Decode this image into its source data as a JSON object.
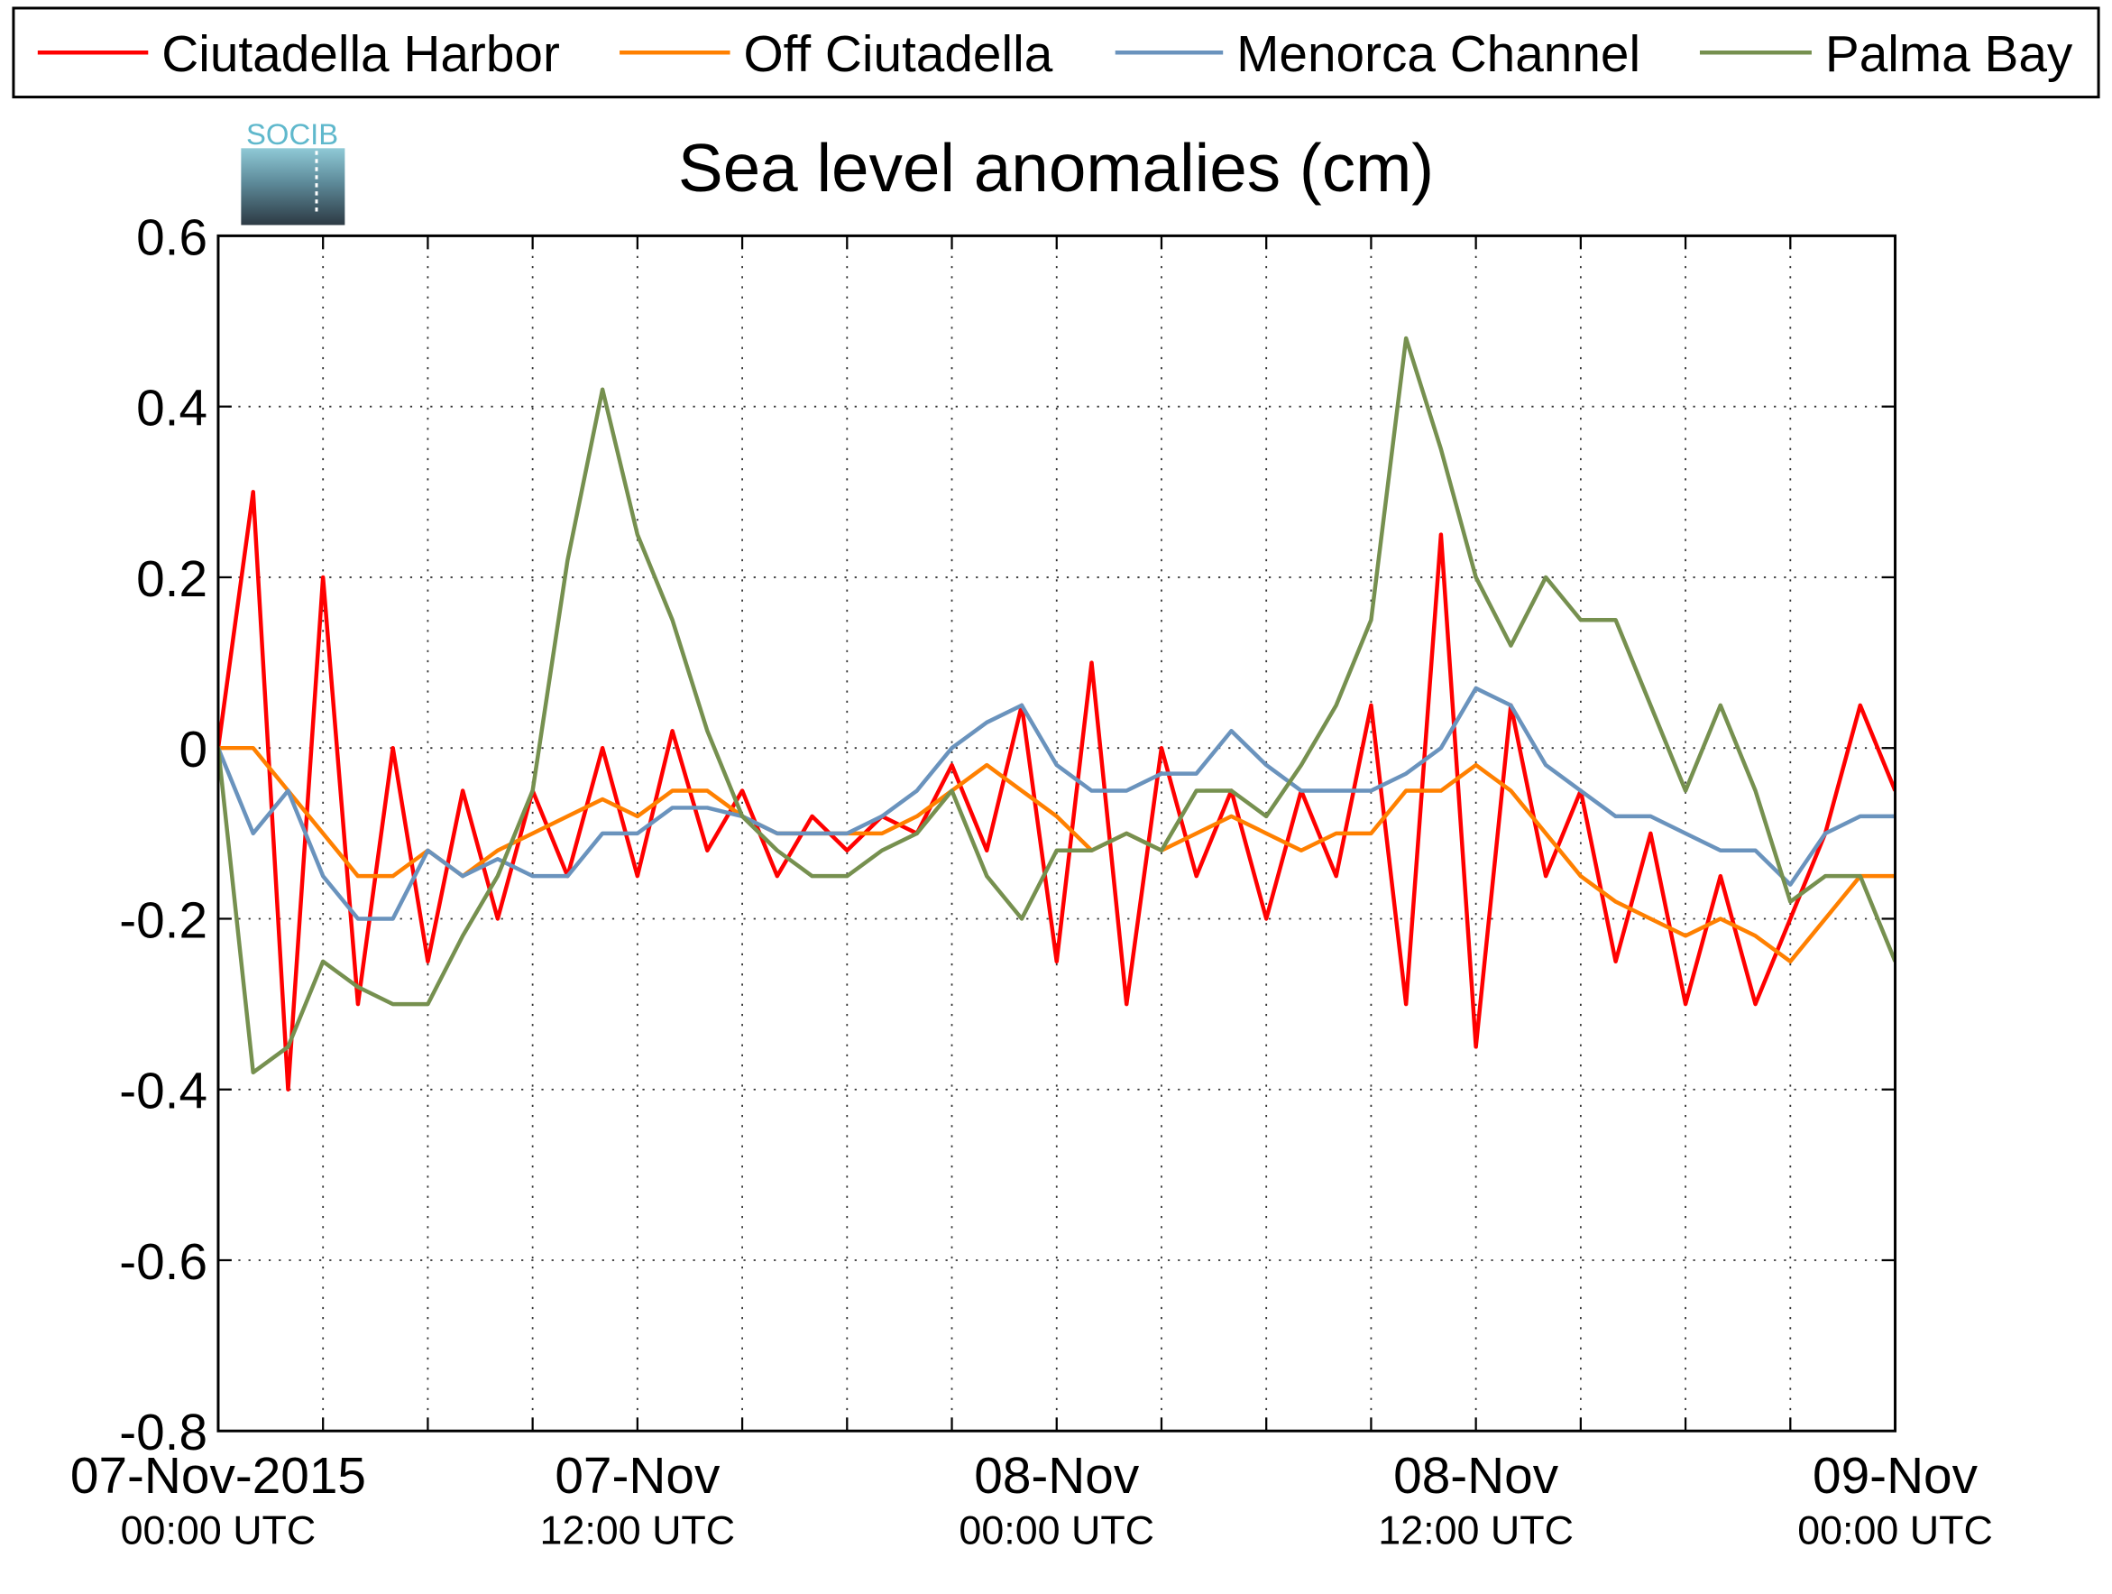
{
  "chart_data": {
    "type": "line",
    "title": "Sea level anomalies (cm)",
    "logo": "SOCIB",
    "x": [
      "2015-11-07T00:00",
      "2015-11-07T01:00",
      "2015-11-07T02:00",
      "2015-11-07T03:00",
      "2015-11-07T04:00",
      "2015-11-07T05:00",
      "2015-11-07T06:00",
      "2015-11-07T07:00",
      "2015-11-07T08:00",
      "2015-11-07T09:00",
      "2015-11-07T10:00",
      "2015-11-07T11:00",
      "2015-11-07T12:00",
      "2015-11-07T13:00",
      "2015-11-07T14:00",
      "2015-11-07T15:00",
      "2015-11-07T16:00",
      "2015-11-07T17:00",
      "2015-11-07T18:00",
      "2015-11-07T19:00",
      "2015-11-07T20:00",
      "2015-11-07T21:00",
      "2015-11-07T22:00",
      "2015-11-07T23:00",
      "2015-11-08T00:00",
      "2015-11-08T01:00",
      "2015-11-08T02:00",
      "2015-11-08T03:00",
      "2015-11-08T04:00",
      "2015-11-08T05:00",
      "2015-11-08T06:00",
      "2015-11-08T07:00",
      "2015-11-08T08:00",
      "2015-11-08T09:00",
      "2015-11-08T10:00",
      "2015-11-08T11:00",
      "2015-11-08T12:00",
      "2015-11-08T13:00",
      "2015-11-08T14:00",
      "2015-11-08T15:00",
      "2015-11-08T16:00",
      "2015-11-08T17:00",
      "2015-11-08T18:00",
      "2015-11-08T19:00",
      "2015-11-08T20:00",
      "2015-11-08T21:00",
      "2015-11-08T22:00",
      "2015-11-08T23:00",
      "2015-11-09T00:00"
    ],
    "series": [
      {
        "name": "Ciutadella Harbor",
        "color": "#ff0000",
        "values": [
          0.0,
          0.3,
          -0.4,
          0.2,
          -0.3,
          0.0,
          -0.25,
          -0.05,
          -0.2,
          -0.05,
          -0.15,
          0.0,
          -0.15,
          0.02,
          -0.12,
          -0.05,
          -0.15,
          -0.08,
          -0.12,
          -0.08,
          -0.1,
          -0.02,
          -0.12,
          0.05,
          -0.25,
          0.1,
          -0.3,
          0.0,
          -0.15,
          -0.05,
          -0.2,
          -0.05,
          -0.15,
          0.05,
          -0.3,
          0.25,
          -0.35,
          0.05,
          -0.15,
          -0.05,
          -0.25,
          -0.1,
          -0.3,
          -0.15,
          -0.3,
          -0.2,
          -0.1,
          0.05,
          -0.05
        ]
      },
      {
        "name": "Off Ciutadella",
        "color": "#ff8000",
        "values": [
          0.0,
          0.0,
          -0.05,
          -0.1,
          -0.15,
          -0.15,
          -0.12,
          -0.15,
          -0.12,
          -0.1,
          -0.08,
          -0.06,
          -0.08,
          -0.05,
          -0.05,
          -0.08,
          -0.1,
          -0.1,
          -0.1,
          -0.1,
          -0.08,
          -0.05,
          -0.02,
          -0.05,
          -0.08,
          -0.12,
          -0.1,
          -0.12,
          -0.1,
          -0.08,
          -0.1,
          -0.12,
          -0.1,
          -0.1,
          -0.05,
          -0.05,
          -0.02,
          -0.05,
          -0.1,
          -0.15,
          -0.18,
          -0.2,
          -0.22,
          -0.2,
          -0.22,
          -0.25,
          -0.2,
          -0.15,
          -0.15
        ]
      },
      {
        "name": "Menorca Channel",
        "color": "#6a93bd",
        "values": [
          0.0,
          -0.1,
          -0.05,
          -0.15,
          -0.2,
          -0.2,
          -0.12,
          -0.15,
          -0.13,
          -0.15,
          -0.15,
          -0.1,
          -0.1,
          -0.07,
          -0.07,
          -0.08,
          -0.1,
          -0.1,
          -0.1,
          -0.08,
          -0.05,
          0.0,
          0.03,
          0.05,
          -0.02,
          -0.05,
          -0.05,
          -0.03,
          -0.03,
          0.02,
          -0.02,
          -0.05,
          -0.05,
          -0.05,
          -0.03,
          0.0,
          0.07,
          0.05,
          -0.02,
          -0.05,
          -0.08,
          -0.08,
          -0.1,
          -0.12,
          -0.12,
          -0.16,
          -0.1,
          -0.08,
          -0.08
        ]
      },
      {
        "name": "Palma Bay",
        "color": "#76904f",
        "values": [
          0.0,
          -0.38,
          -0.35,
          -0.25,
          -0.28,
          -0.3,
          -0.3,
          -0.22,
          -0.15,
          -0.05,
          0.22,
          0.42,
          0.25,
          0.15,
          0.02,
          -0.08,
          -0.12,
          -0.15,
          -0.15,
          -0.12,
          -0.1,
          -0.05,
          -0.15,
          -0.2,
          -0.12,
          -0.12,
          -0.1,
          -0.12,
          -0.05,
          -0.05,
          -0.08,
          -0.02,
          0.05,
          0.15,
          0.48,
          0.35,
          0.2,
          0.12,
          0.2,
          0.15,
          0.15,
          0.05,
          -0.05,
          0.05,
          -0.05,
          -0.18,
          -0.15,
          -0.15,
          -0.25
        ]
      }
    ],
    "xlim": [
      "2015-11-07T00:00",
      "2015-11-09T00:00"
    ],
    "xticks": [
      {
        "value": "2015-11-07T00:00",
        "label": [
          "07-Nov-2015",
          "00:00 UTC"
        ]
      },
      {
        "value": "2015-11-07T12:00",
        "label": [
          "07-Nov",
          "12:00 UTC"
        ]
      },
      {
        "value": "2015-11-08T00:00",
        "label": [
          "08-Nov",
          "00:00 UTC"
        ]
      },
      {
        "value": "2015-11-08T12:00",
        "label": [
          "08-Nov",
          "12:00 UTC"
        ]
      },
      {
        "value": "2015-11-09T00:00",
        "label": [
          "09-Nov",
          "00:00 UTC"
        ]
      }
    ],
    "xminor": [
      "2015-11-07T03:00",
      "2015-11-07T06:00",
      "2015-11-07T09:00",
      "2015-11-07T15:00",
      "2015-11-07T18:00",
      "2015-11-07T21:00",
      "2015-11-08T03:00",
      "2015-11-08T06:00",
      "2015-11-08T09:00",
      "2015-11-08T15:00",
      "2015-11-08T18:00",
      "2015-11-08T21:00"
    ],
    "ylim": [
      -0.8,
      0.6
    ],
    "yticks": [
      -0.8,
      -0.6,
      -0.4,
      -0.2,
      0,
      0.2,
      0.4,
      0.6
    ],
    "grid": true,
    "legend": "top"
  }
}
